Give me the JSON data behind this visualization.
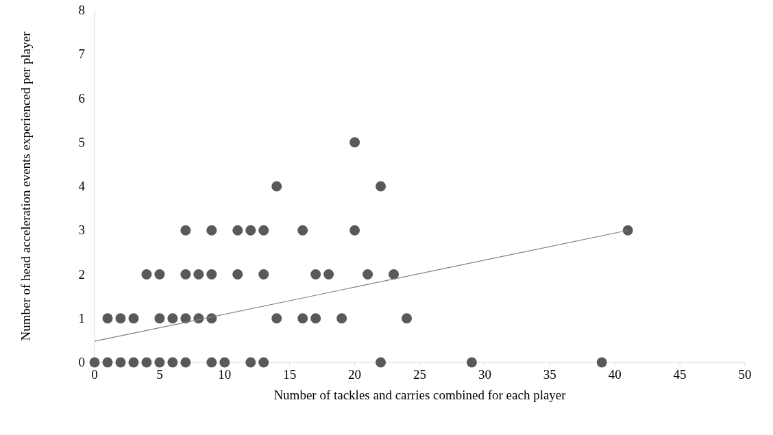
{
  "chart_data": {
    "type": "scatter",
    "xlabel": "Number of tackles and carries combined for each player",
    "ylabel": "Number of  head acceleration events experienced per player",
    "xlim": [
      0,
      50
    ],
    "ylim": [
      0,
      8
    ],
    "xticks": [
      0,
      5,
      10,
      15,
      20,
      25,
      30,
      35,
      40,
      45,
      50
    ],
    "yticks": [
      0,
      1,
      2,
      3,
      4,
      5,
      6,
      7,
      8
    ],
    "grid": false,
    "marker": "circle",
    "series": [
      {
        "color": "#595959",
        "x": [
          0,
          1,
          2,
          3,
          4,
          5,
          6,
          7,
          9,
          10,
          12,
          13,
          22,
          29,
          39,
          1,
          2,
          3,
          5,
          6,
          7,
          8,
          9,
          14,
          16,
          17,
          19,
          24,
          4,
          5,
          7,
          8,
          9,
          11,
          13,
          17,
          18,
          21,
          23,
          7,
          9,
          11,
          12,
          13,
          16,
          20,
          41,
          14,
          22,
          20
        ],
        "values": [
          0,
          0,
          0,
          0,
          0,
          0,
          0,
          0,
          0,
          0,
          0,
          0,
          0,
          0,
          0,
          1,
          1,
          1,
          1,
          1,
          1,
          1,
          1,
          1,
          1,
          1,
          1,
          1,
          2,
          2,
          2,
          2,
          2,
          2,
          2,
          2,
          2,
          2,
          2,
          3,
          3,
          3,
          3,
          3,
          3,
          3,
          3,
          4,
          4,
          5
        ]
      },
      {
        "type": "line",
        "color": "#7f7f7f",
        "line_style": "solid",
        "marker": "none",
        "x": [
          0,
          41
        ],
        "values": [
          0.48,
          3.0
        ]
      }
    ]
  }
}
